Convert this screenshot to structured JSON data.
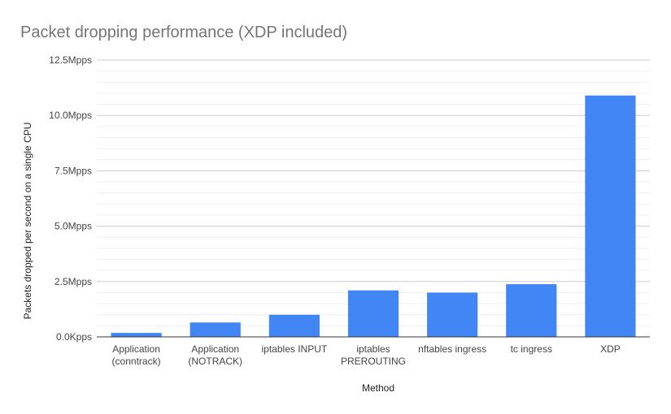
{
  "chart_data": {
    "type": "bar",
    "title": "Packet dropping performance (XDP included)",
    "xlabel": "Method",
    "ylabel": "Packets dropped per second on a single CPU",
    "categories": [
      [
        "Application",
        "(conntrack)"
      ],
      [
        "Application",
        "(NOTRACK)"
      ],
      [
        "iptables INPUT"
      ],
      [
        "iptables",
        "PREROUTING"
      ],
      [
        "nftables ingress"
      ],
      [
        "tc ingress"
      ],
      [
        "XDP"
      ]
    ],
    "values": [
      0.18,
      0.65,
      1.0,
      2.1,
      2.0,
      2.38,
      10.9
    ],
    "ylim": [
      0,
      12.5
    ],
    "yticks": [
      {
        "value": 0,
        "label": "0.0Kpps"
      },
      {
        "value": 2.5,
        "label": "2.5Mpps"
      },
      {
        "value": 5,
        "label": "5.0Mpps"
      },
      {
        "value": 7.5,
        "label": "7.5Mpps"
      },
      {
        "value": 10,
        "label": "10.0Mpps"
      },
      {
        "value": 12.5,
        "label": "12.5Mpps"
      }
    ],
    "minor_grid_step": 0.5,
    "grid": true,
    "legend": "none",
    "bar_color": "#4285f4"
  }
}
